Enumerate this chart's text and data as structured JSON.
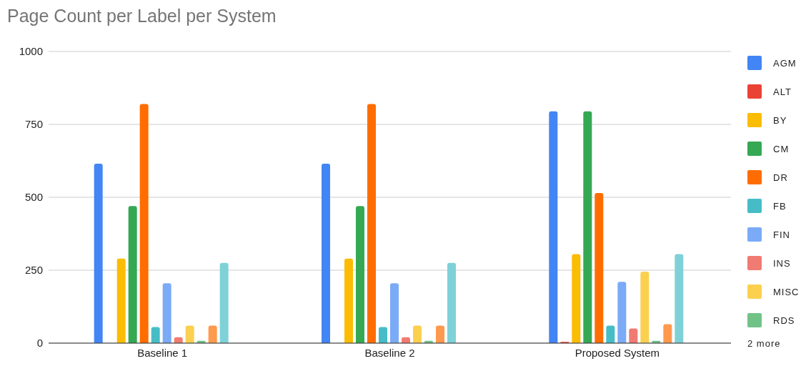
{
  "chart_data": {
    "type": "bar",
    "title": "Page Count per Label per System",
    "categories": [
      "Baseline 1",
      "Baseline 2",
      "Proposed System"
    ],
    "series": [
      {
        "name": "AGM",
        "color": "#4285f4",
        "values": [
          615,
          615,
          795
        ]
      },
      {
        "name": "ALT",
        "color": "#ea4335",
        "values": [
          0,
          0,
          4
        ]
      },
      {
        "name": "BY",
        "color": "#fbbc04",
        "values": [
          290,
          290,
          305
        ]
      },
      {
        "name": "CM",
        "color": "#34a853",
        "values": [
          470,
          470,
          795
        ]
      },
      {
        "name": "DR",
        "color": "#ff6d01",
        "values": [
          820,
          820,
          515
        ]
      },
      {
        "name": "FB",
        "color": "#46bdc6",
        "values": [
          55,
          55,
          60
        ]
      },
      {
        "name": "FIN",
        "color": "#7baaf7",
        "values": [
          205,
          205,
          210
        ]
      },
      {
        "name": "INS",
        "color": "#f07b72",
        "values": [
          20,
          20,
          50
        ]
      },
      {
        "name": "MISC",
        "color": "#fcd04f",
        "values": [
          60,
          60,
          245
        ]
      },
      {
        "name": "RDS",
        "color": "#71c287",
        "values": [
          8,
          8,
          8
        ]
      },
      {
        "color": "#ff994d",
        "values": [
          60,
          60,
          65
        ]
      },
      {
        "color": "#7ed1d7",
        "values": [
          275,
          275,
          305
        ]
      }
    ],
    "ylim": [
      0,
      1000
    ],
    "yticks": [
      0,
      250,
      500,
      750,
      1000
    ],
    "grid": "y",
    "legend": "right",
    "annotations": [
      "2 more"
    ]
  }
}
